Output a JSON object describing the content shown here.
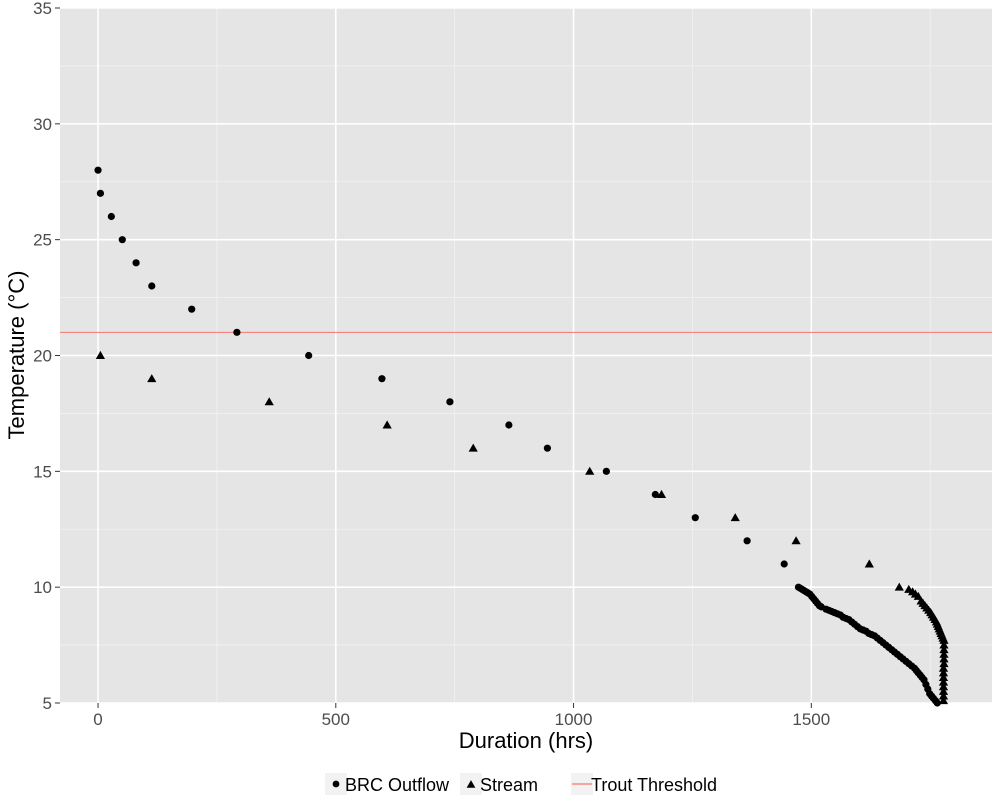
{
  "chart_data": {
    "type": "scatter",
    "title": "",
    "xlabel": "Duration (hrs)",
    "ylabel": "Temperature (°C)",
    "xlim": [
      -80,
      1880
    ],
    "ylim": [
      5,
      35
    ],
    "xticks": [
      0,
      500,
      1000,
      1500
    ],
    "yticks": [
      5,
      10,
      15,
      20,
      25,
      30,
      35
    ],
    "grid": true,
    "legend_position": "bottom",
    "series": [
      {
        "name": "BRC Outflow",
        "marker": "circle",
        "color": "#000000",
        "points": [
          [
            0,
            28
          ],
          [
            5,
            27
          ],
          [
            28,
            26
          ],
          [
            51,
            25
          ],
          [
            80,
            24
          ],
          [
            113,
            23
          ],
          [
            197,
            22
          ],
          [
            292,
            21
          ],
          [
            443,
            20
          ],
          [
            597,
            19
          ],
          [
            740,
            18
          ],
          [
            864,
            17
          ],
          [
            945,
            16
          ],
          [
            1069,
            15
          ],
          [
            1172,
            14
          ],
          [
            1256,
            13
          ],
          [
            1365,
            12
          ],
          [
            1443,
            11
          ],
          [
            1473,
            10
          ],
          [
            1477,
            9.95
          ],
          [
            1481,
            9.9
          ],
          [
            1485,
            9.85
          ],
          [
            1489,
            9.8
          ],
          [
            1493,
            9.75
          ],
          [
            1497,
            9.7
          ],
          [
            1501,
            9.6
          ],
          [
            1505,
            9.5
          ],
          [
            1509,
            9.4
          ],
          [
            1513,
            9.3
          ],
          [
            1517,
            9.2
          ],
          [
            1521,
            9.15
          ],
          [
            1531,
            9.05
          ],
          [
            1537,
            9.0
          ],
          [
            1543,
            8.95
          ],
          [
            1549,
            8.9
          ],
          [
            1555,
            8.85
          ],
          [
            1561,
            8.8
          ],
          [
            1567,
            8.7
          ],
          [
            1573,
            8.65
          ],
          [
            1579,
            8.6
          ],
          [
            1585,
            8.5
          ],
          [
            1591,
            8.4
          ],
          [
            1597,
            8.3
          ],
          [
            1603,
            8.2
          ],
          [
            1609,
            8.15
          ],
          [
            1615,
            8.1
          ],
          [
            1621,
            8.0
          ],
          [
            1627,
            7.95
          ],
          [
            1633,
            7.9
          ],
          [
            1639,
            7.8
          ],
          [
            1645,
            7.7
          ],
          [
            1651,
            7.6
          ],
          [
            1657,
            7.5
          ],
          [
            1663,
            7.4
          ],
          [
            1669,
            7.3
          ],
          [
            1675,
            7.2
          ],
          [
            1681,
            7.1
          ],
          [
            1687,
            7.0
          ],
          [
            1693,
            6.9
          ],
          [
            1699,
            6.8
          ],
          [
            1705,
            6.7
          ],
          [
            1711,
            6.6
          ],
          [
            1717,
            6.5
          ],
          [
            1721,
            6.4
          ],
          [
            1725,
            6.3
          ],
          [
            1729,
            6.2
          ],
          [
            1733,
            6.1
          ],
          [
            1737,
            6.0
          ],
          [
            1741,
            5.8
          ],
          [
            1745,
            5.6
          ],
          [
            1749,
            5.4
          ],
          [
            1753,
            5.3
          ],
          [
            1757,
            5.2
          ],
          [
            1761,
            5.1
          ],
          [
            1765,
            5.0
          ]
        ]
      },
      {
        "name": "Stream",
        "marker": "triangle",
        "color": "#000000",
        "points": [
          [
            5,
            20
          ],
          [
            113,
            19
          ],
          [
            360,
            18
          ],
          [
            608,
            17
          ],
          [
            789,
            16
          ],
          [
            1034,
            15
          ],
          [
            1185,
            14
          ],
          [
            1340,
            13
          ],
          [
            1468,
            12
          ],
          [
            1622,
            11
          ],
          [
            1685,
            10
          ],
          [
            1705,
            9.9
          ],
          [
            1713,
            9.8
          ],
          [
            1719,
            9.7
          ],
          [
            1725,
            9.6
          ],
          [
            1731,
            9.4
          ],
          [
            1735,
            9.3
          ],
          [
            1739,
            9.2
          ],
          [
            1743,
            9.1
          ],
          [
            1747,
            9.0
          ],
          [
            1751,
            8.9
          ],
          [
            1754,
            8.8
          ],
          [
            1757,
            8.7
          ],
          [
            1760,
            8.6
          ],
          [
            1763,
            8.5
          ],
          [
            1765,
            8.4
          ],
          [
            1767,
            8.3
          ],
          [
            1769,
            8.2
          ],
          [
            1771,
            8.1
          ],
          [
            1773,
            8.0
          ],
          [
            1775,
            7.9
          ],
          [
            1777,
            7.8
          ],
          [
            1779,
            7.7
          ],
          [
            1779,
            7.5
          ],
          [
            1779,
            7.3
          ],
          [
            1779,
            7.1
          ],
          [
            1779,
            6.9
          ],
          [
            1779,
            6.7
          ],
          [
            1778,
            6.5
          ],
          [
            1778,
            6.3
          ],
          [
            1778,
            6.1
          ],
          [
            1778,
            5.9
          ],
          [
            1778,
            5.7
          ],
          [
            1778,
            5.5
          ],
          [
            1778,
            5.3
          ],
          [
            1778,
            5.1
          ]
        ]
      }
    ],
    "reference_lines": [
      {
        "name": "Trout Threshold",
        "orientation": "horizontal",
        "value": 21,
        "color": "#f8766d"
      }
    ]
  }
}
